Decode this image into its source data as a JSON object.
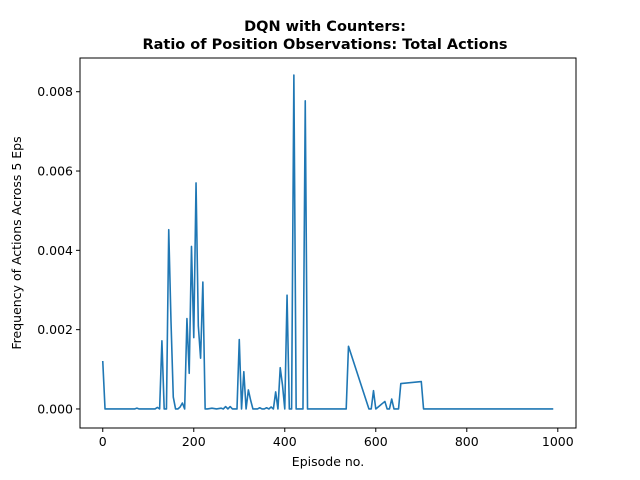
{
  "chart_data": {
    "type": "line",
    "title_line1": "DQN with Counters:",
    "title_line2": "Ratio of Position Observations: Total Actions",
    "xlabel": "Episode no.",
    "ylabel": "Frequency of Actions Across 5 Eps",
    "xlim": [
      -50,
      1040
    ],
    "ylim": [
      -0.00048,
      0.00885
    ],
    "grid": false,
    "x_ticks": [
      0,
      200,
      400,
      600,
      800,
      1000
    ],
    "y_ticks": [
      0.0,
      0.002,
      0.004,
      0.006,
      0.008
    ],
    "x_tick_labels": [
      "0",
      "200",
      "400",
      "600",
      "800",
      "1000"
    ],
    "y_tick_labels": [
      "0.000",
      "0.002",
      "0.004",
      "0.006",
      "0.008"
    ],
    "line_color": "#1f77b4",
    "series": [
      {
        "name": "",
        "x": [
          0,
          5,
          70,
          75,
          80,
          115,
          120,
          125,
          130,
          135,
          140,
          145,
          150,
          155,
          160,
          165,
          170,
          175,
          180,
          185,
          190,
          195,
          200,
          205,
          210,
          215,
          220,
          225,
          230,
          240,
          250,
          260,
          265,
          270,
          275,
          280,
          285,
          290,
          295,
          300,
          305,
          310,
          315,
          320,
          325,
          330,
          335,
          340,
          345,
          350,
          355,
          360,
          365,
          370,
          375,
          380,
          385,
          390,
          395,
          400,
          405,
          410,
          415,
          420,
          425,
          430,
          435,
          440,
          445,
          450,
          530,
          535,
          540,
          585,
          590,
          595,
          600,
          620,
          625,
          630,
          635,
          640,
          645,
          650,
          655,
          700,
          705,
          710,
          715,
          720,
          990
        ],
        "y": [
          0.00121,
          0.0,
          0.0,
          2e-05,
          0.0,
          0.0,
          4e-05,
          0.0,
          0.00172,
          0.0,
          0.0,
          0.00452,
          0.0022,
          0.0003,
          0.0,
          0.0,
          5e-05,
          0.00015,
          0.0,
          0.00228,
          0.0009,
          0.0041,
          0.0018,
          0.0057,
          0.0021,
          0.00128,
          0.0032,
          0.0,
          0.0,
          2e-05,
          0.0,
          2e-05,
          0.0,
          6e-05,
          0.0,
          6e-05,
          0.0,
          0.0,
          0.0,
          0.00175,
          0.0,
          0.00094,
          0.0,
          0.00048,
          0.00022,
          0.0,
          0.0,
          0.0,
          3e-05,
          0.0,
          0.0,
          3e-05,
          0.0,
          5e-05,
          0.0,
          0.00043,
          0.0,
          0.00104,
          0.0006,
          0.0,
          0.00287,
          0.0,
          0.0,
          0.00842,
          0.0,
          0.0,
          0.0,
          0.0,
          0.00777,
          0.0,
          0.0,
          0.0,
          0.00158,
          0.0,
          0.0,
          0.00046,
          0.0,
          0.00019,
          0.0,
          0.0,
          0.00025,
          0.0,
          0.0,
          0.0,
          0.00064,
          0.00069,
          0.0,
          0.0,
          0.0,
          0.0,
          0.0
        ]
      }
    ]
  }
}
